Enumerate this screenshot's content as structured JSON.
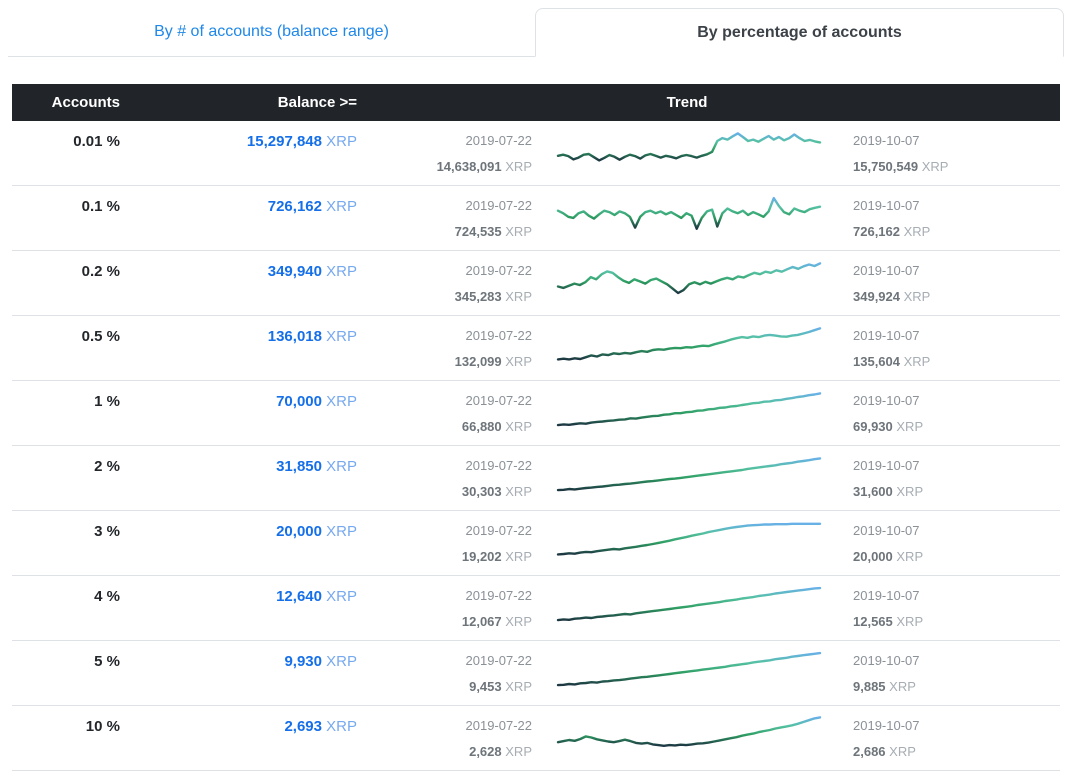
{
  "tabs": [
    {
      "label": "By # of accounts (balance range)",
      "active": false
    },
    {
      "label": "By percentage of accounts",
      "active": true
    }
  ],
  "table": {
    "headers": {
      "accounts": "Accounts",
      "balance": "Balance >=",
      "trend": "Trend"
    },
    "rows": [
      {
        "percent": "0.01 %",
        "balance": "15,297,848",
        "unit": "XRP",
        "start_date": "2019-07-22",
        "start_value": "14,638,091",
        "end_date": "2019-10-07",
        "end_value": "15,750,549",
        "trend": [
          0.34,
          0.37,
          0.33,
          0.24,
          0.29,
          0.37,
          0.39,
          0.3,
          0.21,
          0.28,
          0.36,
          0.31,
          0.23,
          0.31,
          0.37,
          0.33,
          0.26,
          0.35,
          0.39,
          0.34,
          0.29,
          0.34,
          0.31,
          0.27,
          0.33,
          0.36,
          0.33,
          0.29,
          0.34,
          0.38,
          0.45,
          0.75,
          0.83,
          0.79,
          0.88,
          0.96,
          0.86,
          0.75,
          0.79,
          0.73,
          0.81,
          0.89,
          0.79,
          0.86,
          0.77,
          0.83,
          0.93,
          0.83,
          0.75,
          0.78,
          0.74,
          0.71
        ]
      },
      {
        "percent": "0.1 %",
        "balance": "726,162",
        "unit": "XRP",
        "start_date": "2019-07-22",
        "start_value": "724,535",
        "end_date": "2019-10-07",
        "end_value": "726,162",
        "trend": [
          0.62,
          0.55,
          0.45,
          0.42,
          0.55,
          0.6,
          0.48,
          0.4,
          0.52,
          0.62,
          0.58,
          0.5,
          0.6,
          0.55,
          0.45,
          0.15,
          0.45,
          0.58,
          0.62,
          0.55,
          0.6,
          0.52,
          0.58,
          0.5,
          0.42,
          0.55,
          0.48,
          0.12,
          0.42,
          0.6,
          0.65,
          0.18,
          0.55,
          0.68,
          0.6,
          0.55,
          0.62,
          0.5,
          0.58,
          0.52,
          0.45,
          0.6,
          0.97,
          0.75,
          0.58,
          0.52,
          0.68,
          0.62,
          0.58,
          0.66,
          0.7,
          0.73
        ]
      },
      {
        "percent": "0.2 %",
        "balance": "349,940",
        "unit": "XRP",
        "start_date": "2019-07-22",
        "start_value": "345,283",
        "end_date": "2019-10-07",
        "end_value": "349,924",
        "trend": [
          0.32,
          0.28,
          0.34,
          0.4,
          0.36,
          0.44,
          0.58,
          0.52,
          0.66,
          0.74,
          0.7,
          0.58,
          0.48,
          0.42,
          0.52,
          0.46,
          0.4,
          0.5,
          0.54,
          0.46,
          0.38,
          0.26,
          0.14,
          0.22,
          0.38,
          0.44,
          0.38,
          0.45,
          0.4,
          0.46,
          0.52,
          0.56,
          0.52,
          0.6,
          0.57,
          0.64,
          0.7,
          0.66,
          0.73,
          0.7,
          0.77,
          0.73,
          0.8,
          0.86,
          0.81,
          0.88,
          0.93,
          0.89,
          0.96
        ]
      },
      {
        "percent": "0.5 %",
        "balance": "136,018",
        "unit": "XRP",
        "start_date": "2019-07-22",
        "start_value": "132,099",
        "end_date": "2019-10-07",
        "end_value": "135,604",
        "trend": [
          0.1,
          0.12,
          0.1,
          0.13,
          0.11,
          0.16,
          0.21,
          0.18,
          0.24,
          0.22,
          0.27,
          0.25,
          0.28,
          0.26,
          0.3,
          0.33,
          0.31,
          0.36,
          0.38,
          0.37,
          0.4,
          0.42,
          0.41,
          0.44,
          0.43,
          0.46,
          0.48,
          0.47,
          0.52,
          0.56,
          0.6,
          0.65,
          0.69,
          0.72,
          0.7,
          0.74,
          0.72,
          0.76,
          0.78,
          0.76,
          0.74,
          0.73,
          0.76,
          0.78,
          0.82,
          0.86,
          0.91,
          0.96
        ]
      },
      {
        "percent": "1 %",
        "balance": "70,000",
        "unit": "XRP",
        "start_date": "2019-07-22",
        "start_value": "66,880",
        "end_date": "2019-10-07",
        "end_value": "69,930",
        "trend": [
          0.08,
          0.1,
          0.09,
          0.11,
          0.13,
          0.12,
          0.15,
          0.17,
          0.18,
          0.2,
          0.21,
          0.23,
          0.24,
          0.27,
          0.26,
          0.29,
          0.31,
          0.33,
          0.34,
          0.37,
          0.38,
          0.41,
          0.41,
          0.44,
          0.45,
          0.48,
          0.49,
          0.52,
          0.53,
          0.56,
          0.57,
          0.6,
          0.61,
          0.64,
          0.66,
          0.69,
          0.7,
          0.73,
          0.74,
          0.77,
          0.78,
          0.81,
          0.83,
          0.86,
          0.88,
          0.91,
          0.93,
          0.96
        ]
      },
      {
        "percent": "2 %",
        "balance": "31,850",
        "unit": "XRP",
        "start_date": "2019-07-22",
        "start_value": "30,303",
        "end_date": "2019-10-07",
        "end_value": "31,600",
        "trend": [
          0.08,
          0.09,
          0.11,
          0.1,
          0.12,
          0.14,
          0.15,
          0.17,
          0.18,
          0.2,
          0.22,
          0.23,
          0.25,
          0.26,
          0.28,
          0.3,
          0.32,
          0.33,
          0.35,
          0.37,
          0.39,
          0.4,
          0.42,
          0.44,
          0.46,
          0.48,
          0.5,
          0.52,
          0.54,
          0.56,
          0.58,
          0.6,
          0.62,
          0.64,
          0.67,
          0.69,
          0.71,
          0.73,
          0.75,
          0.77,
          0.8,
          0.82,
          0.84,
          0.87,
          0.89,
          0.91,
          0.94,
          0.96
        ]
      },
      {
        "percent": "3 %",
        "balance": "20,000",
        "unit": "XRP",
        "start_date": "2019-07-22",
        "start_value": "19,202",
        "end_date": "2019-10-07",
        "end_value": "20,000",
        "trend": [
          0.1,
          0.11,
          0.13,
          0.12,
          0.15,
          0.17,
          0.16,
          0.19,
          0.21,
          0.23,
          0.25,
          0.24,
          0.27,
          0.29,
          0.31,
          0.34,
          0.36,
          0.39,
          0.42,
          0.45,
          0.48,
          0.52,
          0.55,
          0.58,
          0.62,
          0.65,
          0.68,
          0.72,
          0.75,
          0.78,
          0.81,
          0.84,
          0.86,
          0.88,
          0.9,
          0.91,
          0.92,
          0.93,
          0.93,
          0.94,
          0.94,
          0.94,
          0.95,
          0.95,
          0.95,
          0.95,
          0.95,
          0.95
        ]
      },
      {
        "percent": "4 %",
        "balance": "12,640",
        "unit": "XRP",
        "start_date": "2019-07-22",
        "start_value": "12,067",
        "end_date": "2019-10-07",
        "end_value": "12,565",
        "trend": [
          0.08,
          0.1,
          0.09,
          0.12,
          0.13,
          0.15,
          0.14,
          0.17,
          0.18,
          0.2,
          0.21,
          0.23,
          0.25,
          0.24,
          0.27,
          0.29,
          0.31,
          0.33,
          0.35,
          0.37,
          0.39,
          0.41,
          0.43,
          0.45,
          0.47,
          0.5,
          0.52,
          0.54,
          0.56,
          0.58,
          0.61,
          0.63,
          0.65,
          0.68,
          0.7,
          0.72,
          0.75,
          0.77,
          0.79,
          0.82,
          0.84,
          0.86,
          0.88,
          0.9,
          0.92,
          0.94,
          0.96,
          0.97
        ]
      },
      {
        "percent": "5 %",
        "balance": "9,930",
        "unit": "XRP",
        "start_date": "2019-07-22",
        "start_value": "9,453",
        "end_date": "2019-10-07",
        "end_value": "9,885",
        "trend": [
          0.08,
          0.09,
          0.11,
          0.1,
          0.13,
          0.14,
          0.16,
          0.15,
          0.18,
          0.19,
          0.21,
          0.22,
          0.24,
          0.26,
          0.28,
          0.3,
          0.31,
          0.33,
          0.35,
          0.37,
          0.39,
          0.41,
          0.43,
          0.45,
          0.47,
          0.49,
          0.51,
          0.53,
          0.55,
          0.57,
          0.59,
          0.62,
          0.64,
          0.66,
          0.68,
          0.71,
          0.73,
          0.75,
          0.77,
          0.8,
          0.82,
          0.84,
          0.87,
          0.89,
          0.91,
          0.93,
          0.95,
          0.97
        ]
      },
      {
        "percent": "10 %",
        "balance": "2,693",
        "unit": "XRP",
        "start_date": "2019-07-22",
        "start_value": "2,628",
        "end_date": "2019-10-07",
        "end_value": "2,686",
        "trend": [
          0.3,
          0.33,
          0.36,
          0.34,
          0.39,
          0.46,
          0.43,
          0.38,
          0.35,
          0.32,
          0.3,
          0.33,
          0.37,
          0.33,
          0.28,
          0.26,
          0.28,
          0.24,
          0.22,
          0.2,
          0.22,
          0.21,
          0.23,
          0.22,
          0.24,
          0.26,
          0.27,
          0.29,
          0.32,
          0.35,
          0.38,
          0.41,
          0.44,
          0.48,
          0.51,
          0.54,
          0.58,
          0.61,
          0.64,
          0.68,
          0.71,
          0.74,
          0.77,
          0.81,
          0.86,
          0.91,
          0.96,
          0.99
        ]
      }
    ]
  },
  "colors": {
    "tab_link": "#2088e8",
    "active_tab_text": "#3c4248",
    "header_bg": "#212529",
    "header_text": "#ffffff",
    "balance_value": "#156fe8",
    "balance_unit": "#77a9ef",
    "date_text": "#8a9197",
    "sub_value": "#6d747a",
    "sub_unit": "#a6adb3",
    "divider": "#dee2e6",
    "spark_low": "#1d3642",
    "spark_green": "#2e9e62",
    "spark_teal": "#55c1a2",
    "spark_high": "#68b0e8"
  }
}
